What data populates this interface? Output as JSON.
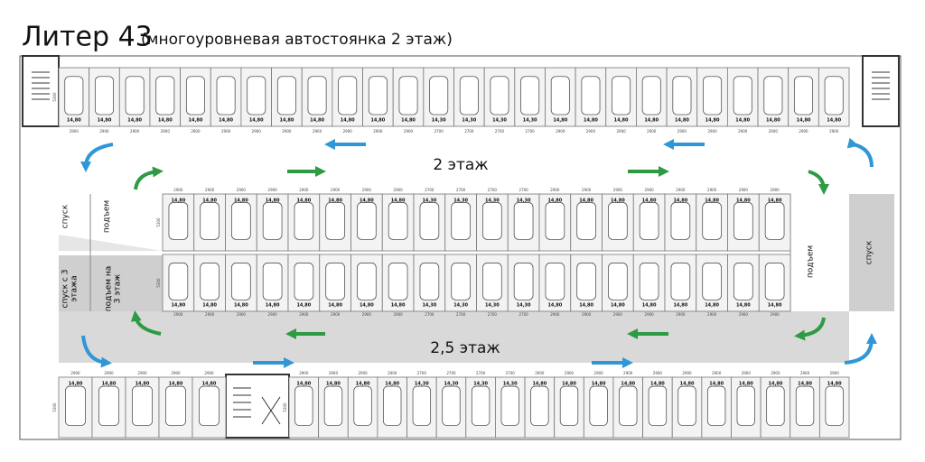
{
  "header": {
    "title": "Литер 43",
    "subtitle": "(многоуровневая автостоянка 2 этаж)"
  },
  "floors": {
    "upper": "2 этаж",
    "lower": "2,5 этаж"
  },
  "ramps": {
    "down_left": "спуск",
    "up_left": "подъем",
    "up_right": "подъем",
    "down_right": "спуск",
    "down_from_3": "спуск с 3 этажа",
    "up_to_3": "подъем на 3 этаж"
  },
  "rows": [
    {
      "depth": "5300",
      "areas": [
        "14,80",
        "14,80",
        "14,80",
        "14,80",
        "14,80",
        "14,80",
        "14,80",
        "14,80",
        "14,80",
        "14,80",
        "14,80",
        "14,80",
        "14,30",
        "14,30",
        "14,30",
        "14,30",
        "14,80",
        "14,80",
        "14,80",
        "14,80",
        "14,80",
        "14,80",
        "14,80",
        "14,80",
        "14,80",
        "14,80"
      ],
      "widths": [
        "2900",
        "2900",
        "2900",
        "2900",
        "2900",
        "2900",
        "2900",
        "2900",
        "2900",
        "2900",
        "2900",
        "2900",
        "2700",
        "2700",
        "2700",
        "2700",
        "2900",
        "2900",
        "2900",
        "2900",
        "2900",
        "2900",
        "2900",
        "2900",
        "2900",
        "2900"
      ]
    },
    {
      "depth": "5300",
      "areas": [
        "14,80",
        "14,80",
        "14,80",
        "14,80",
        "14,80",
        "14,80",
        "14,80",
        "14,80",
        "14,30",
        "14,30",
        "14,30",
        "14,30",
        "14,80",
        "14,80",
        "14,80",
        "14,80",
        "14,80",
        "14,80",
        "14,80",
        "14,80"
      ],
      "widths": [
        "2900",
        "2900",
        "2900",
        "2900",
        "2900",
        "2900",
        "2900",
        "2900",
        "2700",
        "2700",
        "2700",
        "2700",
        "2900",
        "2900",
        "2900",
        "2900",
        "2900",
        "2900",
        "2900",
        "2900"
      ]
    },
    {
      "depth": "5300",
      "areas": [
        "14,80",
        "14,80",
        "14,80",
        "14,80",
        "14,80",
        "14,80",
        "14,80",
        "14,80",
        "14,30",
        "14,30",
        "14,30",
        "14,30",
        "14,80",
        "14,80",
        "14,80",
        "14,80",
        "14,80",
        "14,80",
        "14,80",
        "14,80"
      ],
      "widths": [
        "2900",
        "2900",
        "2900",
        "2900",
        "2900",
        "2900",
        "2900",
        "2900",
        "2700",
        "2700",
        "2700",
        "2700",
        "2900",
        "2900",
        "2900",
        "2900",
        "2900",
        "2900",
        "2900",
        "2900"
      ]
    },
    {
      "depth": "5300",
      "areas": [
        "14,80",
        "14,80",
        "14,80",
        "14,80",
        "14,80"
      ],
      "widths": [
        "2900",
        "2900",
        "2900",
        "2900",
        "2900"
      ]
    },
    {
      "depth": "5300",
      "areas": [
        "14,80",
        "14,80",
        "14,80",
        "14,80",
        "14,30",
        "14,30",
        "14,30",
        "14,30",
        "14,80",
        "14,80",
        "14,80",
        "14,80",
        "14,80",
        "14,80",
        "14,80",
        "14,80",
        "14,80",
        "14,80",
        "14,80"
      ],
      "widths": [
        "2900",
        "2900",
        "2900",
        "2900",
        "2700",
        "2700",
        "2700",
        "2700",
        "2900",
        "2900",
        "2900",
        "2900",
        "2900",
        "2900",
        "2900",
        "2900",
        "2900",
        "2900",
        "2900"
      ]
    }
  ]
}
